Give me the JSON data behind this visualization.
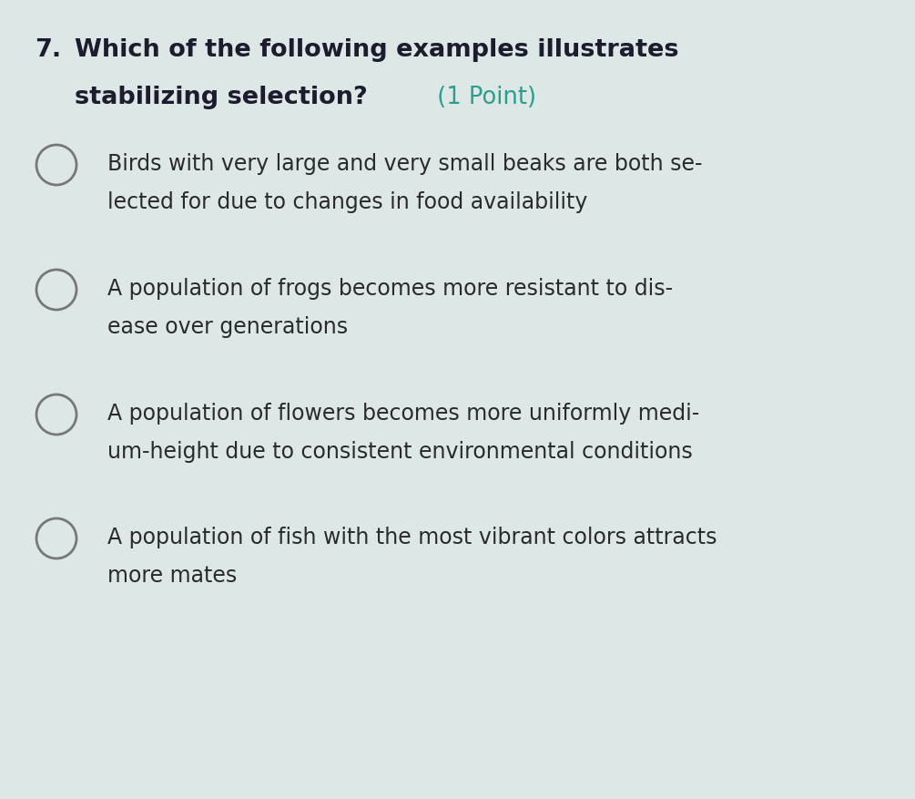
{
  "background_color": "#dde8e6",
  "question_number": "7.",
  "question_line1": "Which of the following examples illustrates",
  "question_line2_bold": "stabilizing selection?",
  "question_point": " (1 Point)",
  "question_bold_color": "#1c1c2e",
  "question_point_color": "#2a9d8f",
  "options": [
    [
      "Birds with very large and very small beaks are both se-",
      "lected for due to changes in food availability"
    ],
    [
      "A population of frogs becomes more resistant to dis-",
      "ease over generations"
    ],
    [
      "A population of flowers becomes more uniformly medi-",
      "um-height due to consistent environmental conditions"
    ],
    [
      "A population of fish with the most vibrant colors attracts",
      "more mates"
    ]
  ],
  "option_color": "#2a2a2a",
  "circle_edge_color": "#777777",
  "circle_face_color": "#dde8e6",
  "title_fontsize": 19.5,
  "option_fontsize": 17,
  "figsize": [
    10.05,
    8.77
  ],
  "dpi": 100
}
